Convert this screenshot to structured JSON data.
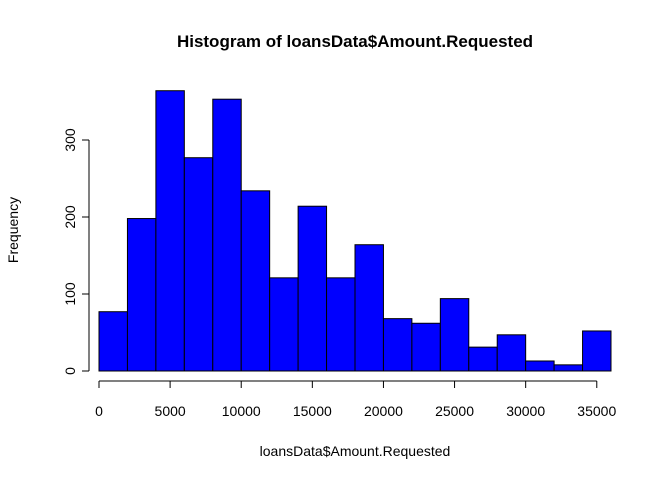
{
  "chart_data": {
    "type": "bar",
    "title": "Histogram of loansData$Amount.Requested",
    "xlabel": "loansData$Amount.Requested",
    "ylabel": "Frequency",
    "bin_width": 2000,
    "xlim": [
      0,
      36000
    ],
    "ylim": [
      0,
      365
    ],
    "bins": [
      {
        "start": 0,
        "end": 2000,
        "count": 77
      },
      {
        "start": 2000,
        "end": 4000,
        "count": 198
      },
      {
        "start": 4000,
        "end": 6000,
        "count": 364
      },
      {
        "start": 6000,
        "end": 8000,
        "count": 277
      },
      {
        "start": 8000,
        "end": 10000,
        "count": 353
      },
      {
        "start": 10000,
        "end": 12000,
        "count": 234
      },
      {
        "start": 12000,
        "end": 14000,
        "count": 121
      },
      {
        "start": 14000,
        "end": 16000,
        "count": 214
      },
      {
        "start": 16000,
        "end": 18000,
        "count": 121
      },
      {
        "start": 18000,
        "end": 20000,
        "count": 164
      },
      {
        "start": 20000,
        "end": 22000,
        "count": 68
      },
      {
        "start": 22000,
        "end": 24000,
        "count": 62
      },
      {
        "start": 24000,
        "end": 26000,
        "count": 94
      },
      {
        "start": 26000,
        "end": 28000,
        "count": 31
      },
      {
        "start": 28000,
        "end": 30000,
        "count": 47
      },
      {
        "start": 30000,
        "end": 32000,
        "count": 13
      },
      {
        "start": 32000,
        "end": 34000,
        "count": 8
      },
      {
        "start": 34000,
        "end": 36000,
        "count": 52
      }
    ],
    "x_ticks": [
      0,
      5000,
      10000,
      15000,
      20000,
      25000,
      30000,
      35000
    ],
    "y_ticks": [
      0,
      100,
      200,
      300
    ],
    "bar_color": "#0000ff",
    "bar_border_color": "#000000",
    "grid": false,
    "legend": "none"
  }
}
